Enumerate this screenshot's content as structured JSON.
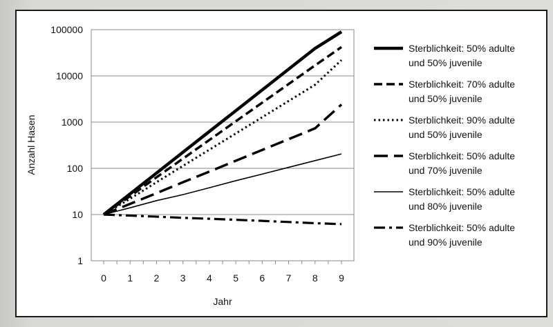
{
  "chart_data": {
    "type": "line",
    "title": "",
    "xlabel": "Jahr",
    "ylabel": "Anzahl Hasen",
    "y_scale": "log",
    "ylim": [
      1,
      100000
    ],
    "xlim": [
      0,
      9
    ],
    "x_tick_labels": [
      "0",
      "1",
      "2",
      "3",
      "4",
      "5",
      "6",
      "7",
      "8",
      "9"
    ],
    "y_tick_labels": [
      "1",
      "10",
      "100",
      "1000",
      "10000",
      "100000"
    ],
    "y_tick_values": [
      1,
      10,
      100,
      1000,
      10000,
      100000
    ],
    "grid": "horizontal",
    "legend_position": "right",
    "x": [
      0,
      1,
      2,
      3,
      4,
      5,
      6,
      7,
      8,
      9
    ],
    "series": [
      {
        "name_line1": "Sterblichkeit: 50% adulte",
        "name_line2": "und 50% juvenile",
        "style": "solid-thick",
        "values": [
          10,
          28,
          79,
          223,
          627,
          1765,
          4966,
          13975,
          39326,
          90000
        ]
      },
      {
        "name_line1": "Sterblichkeit: 70% adulte",
        "name_line2": "und 50% juvenile",
        "style": "dashed",
        "values": [
          10,
          25,
          64,
          162,
          411,
          1040,
          2634,
          6670,
          16889,
          42000
        ]
      },
      {
        "name_line1": "Sterblichkeit: 90% adulte",
        "name_line2": "und 50% juvenile",
        "style": "dotted",
        "values": [
          10,
          22,
          50,
          113,
          253,
          568,
          1275,
          2862,
          6425,
          22000
        ]
      },
      {
        "name_line1": "Sterblichkeit: 50% adulte",
        "name_line2": "und 70% juvenile",
        "style": "long-dashed",
        "values": [
          10,
          17,
          29,
          50,
          85,
          146,
          250,
          428,
          733,
          2400
        ]
      },
      {
        "name_line1": "Sterblichkeit: 50% adulte",
        "name_line2": "und 80% juvenile",
        "style": "solid-thin",
        "values": [
          10,
          14,
          20,
          27,
          38,
          54,
          75,
          105,
          147,
          205
        ]
      },
      {
        "name_line1": "Sterblichkeit: 50% adulte",
        "name_line2": "und 90% juvenile",
        "style": "dash-dot",
        "values": [
          10,
          9.5,
          9.0,
          8.5,
          8.1,
          7.7,
          7.3,
          6.9,
          6.5,
          6.2
        ]
      }
    ]
  }
}
